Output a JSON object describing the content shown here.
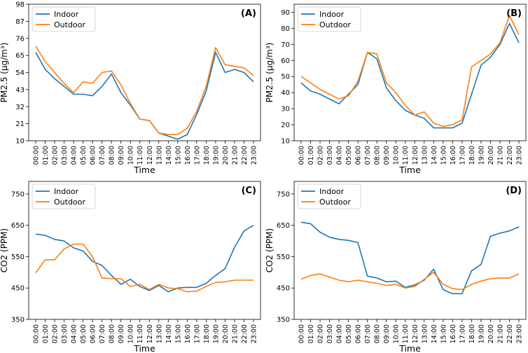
{
  "colors": {
    "indoor": "#1f77b4",
    "outdoor": "#ff7f0e",
    "axis": "#000000",
    "background": "#ffffff"
  },
  "chart_data": [
    {
      "type": "line",
      "panel_label": "(A)",
      "xlabel": "Time",
      "ylabel": "PM2.5 (μg/m³)",
      "ylim": [
        10,
        98
      ],
      "yticks": [
        10,
        21,
        32,
        43,
        54,
        65,
        76,
        87,
        98
      ],
      "legend_loc": "top-left",
      "categories": [
        "00:00",
        "01:00",
        "02:00",
        "03:00",
        "04:00",
        "05:00",
        "06:00",
        "07:00",
        "08:00",
        "09:00",
        "10:00",
        "11:00",
        "12:00",
        "13:00",
        "14:00",
        "15:00",
        "16:00",
        "17:00",
        "18:00",
        "19:00",
        "20:00",
        "21:00",
        "22:00",
        "23:00"
      ],
      "series": [
        {
          "name": "Indoor",
          "values": [
            67,
            56,
            50,
            45,
            40,
            40,
            39,
            45,
            53,
            41,
            33,
            24,
            23,
            15,
            13,
            11,
            14,
            27,
            42,
            67,
            54,
            56,
            54,
            48
          ]
        },
        {
          "name": "Outdoor",
          "values": [
            71,
            61,
            54,
            47,
            41,
            48,
            47,
            54,
            55,
            46,
            34,
            24,
            23,
            15,
            14,
            14,
            18,
            29,
            45,
            70,
            59,
            58,
            57,
            52
          ]
        }
      ]
    },
    {
      "type": "line",
      "panel_label": "(B)",
      "xlabel": "Time",
      "ylabel": "PM2.5 (μg/m³)",
      "ylim": [
        10,
        95
      ],
      "yticks": [
        10,
        20,
        30,
        40,
        50,
        60,
        70,
        80,
        90
      ],
      "legend_loc": "top-left",
      "categories": [
        "00:00",
        "01:00",
        "02:00",
        "03:00",
        "04:00",
        "05:00",
        "06:00",
        "07:00",
        "08:00",
        "09:00",
        "10:00",
        "11:00",
        "12:00",
        "13:00",
        "14:00",
        "15:00",
        "16:00",
        "17:00",
        "18:00",
        "19:00",
        "20:00",
        "21:00",
        "22:00",
        "23:00"
      ],
      "series": [
        {
          "name": "Indoor",
          "values": [
            46,
            41,
            39,
            36,
            33,
            39,
            45,
            65,
            61,
            43,
            35,
            29,
            26,
            24,
            18,
            18,
            18,
            21,
            39,
            57,
            62,
            70,
            83,
            71
          ]
        },
        {
          "name": "Outdoor",
          "values": [
            50,
            46,
            42,
            39,
            36,
            38,
            47,
            65,
            64,
            46,
            40,
            32,
            26,
            28,
            21,
            19,
            20,
            23,
            56,
            60,
            64,
            71,
            88,
            76
          ]
        }
      ]
    },
    {
      "type": "line",
      "panel_label": "(C)",
      "xlabel": "Time",
      "ylabel": "CO2 (PPM)",
      "ylim": [
        350,
        790
      ],
      "yticks": [
        350,
        450,
        550,
        650,
        750
      ],
      "legend_loc": "top-left",
      "categories": [
        "00:00",
        "01:00",
        "02:00",
        "03:00",
        "04:00",
        "05:00",
        "06:00",
        "07:00",
        "08:00",
        "09:00",
        "10:00",
        "11:00",
        "12:00",
        "13:00",
        "14:00",
        "15:00",
        "16:00",
        "17:00",
        "18:00",
        "19:00",
        "20:00",
        "21:00",
        "22:00",
        "23:00"
      ],
      "series": [
        {
          "name": "Indoor",
          "values": [
            622,
            618,
            605,
            600,
            578,
            568,
            535,
            522,
            490,
            462,
            478,
            455,
            442,
            458,
            438,
            450,
            452,
            452,
            465,
            490,
            512,
            580,
            632,
            650
          ]
        },
        {
          "name": "Outdoor",
          "values": [
            498,
            540,
            540,
            575,
            590,
            590,
            550,
            482,
            480,
            480,
            455,
            462,
            445,
            462,
            450,
            448,
            438,
            440,
            455,
            468,
            470,
            475,
            475,
            475
          ]
        }
      ]
    },
    {
      "type": "line",
      "panel_label": "(D)",
      "xlabel": "Time",
      "ylabel": "CO2 (PPM)",
      "ylim": [
        350,
        790
      ],
      "yticks": [
        350,
        450,
        550,
        650,
        750
      ],
      "legend_loc": "top-left",
      "categories": [
        "00:00",
        "01:00",
        "02:00",
        "03:00",
        "04:00",
        "05:00",
        "06:00",
        "07:00",
        "08:00",
        "09:00",
        "10:00",
        "11:00",
        "12:00",
        "13:00",
        "14:00",
        "15:00",
        "16:00",
        "17:00",
        "18:00",
        "19:00",
        "20:00",
        "21:00",
        "22:00",
        "23:00"
      ],
      "series": [
        {
          "name": "Indoor",
          "values": [
            660,
            655,
            628,
            612,
            605,
            602,
            595,
            488,
            482,
            470,
            472,
            452,
            460,
            475,
            510,
            445,
            432,
            432,
            505,
            525,
            615,
            625,
            632,
            645
          ]
        },
        {
          "name": "Outdoor",
          "values": [
            478,
            490,
            495,
            485,
            475,
            470,
            475,
            470,
            465,
            458,
            462,
            450,
            455,
            478,
            500,
            462,
            448,
            445,
            462,
            472,
            480,
            482,
            482,
            495
          ]
        }
      ]
    }
  ]
}
